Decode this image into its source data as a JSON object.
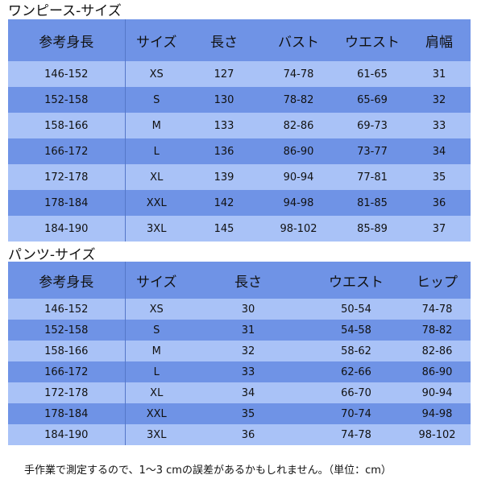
{
  "colors": {
    "header_row": "#6f93e6",
    "dark_row": "#6f93e6",
    "light_row": "#a9c2f7"
  },
  "dress": {
    "title": "ワンピース-サイズ",
    "headers": [
      "参考身長",
      "サイズ",
      "長さ",
      "バスト",
      "ウエスト",
      "肩幅"
    ],
    "rows": [
      [
        "146-152",
        "XS",
        "127",
        "74-78",
        "61-65",
        "31"
      ],
      [
        "152-158",
        "S",
        "130",
        "78-82",
        "65-69",
        "32"
      ],
      [
        "158-166",
        "M",
        "133",
        "82-86",
        "69-73",
        "33"
      ],
      [
        "166-172",
        "L",
        "136",
        "86-90",
        "73-77",
        "34"
      ],
      [
        "172-178",
        "XL",
        "139",
        "90-94",
        "77-81",
        "35"
      ],
      [
        "178-184",
        "XXL",
        "142",
        "94-98",
        "81-85",
        "36"
      ],
      [
        "184-190",
        "3XL",
        "145",
        "98-102",
        "85-89",
        "37"
      ]
    ]
  },
  "pants": {
    "title": "パンツ-サイズ",
    "headers": [
      "参考身長",
      "サイズ",
      "長さ",
      "ウエスト",
      "ヒップ"
    ],
    "rows": [
      [
        "146-152",
        "XS",
        "30",
        "50-54",
        "74-78"
      ],
      [
        "152-158",
        "S",
        "31",
        "54-58",
        "78-82"
      ],
      [
        "158-166",
        "M",
        "32",
        "58-62",
        "82-86"
      ],
      [
        "166-172",
        "L",
        "33",
        "62-66",
        "86-90"
      ],
      [
        "172-178",
        "XL",
        "34",
        "66-70",
        "90-94"
      ],
      [
        "178-184",
        "XXL",
        "35",
        "70-74",
        "94-98"
      ],
      [
        "184-190",
        "3XL",
        "36",
        "74-78",
        "98-102"
      ]
    ]
  },
  "note": "手作業で測定するので、1～3 cmの誤差があるかもしれません。（単位：cm）"
}
